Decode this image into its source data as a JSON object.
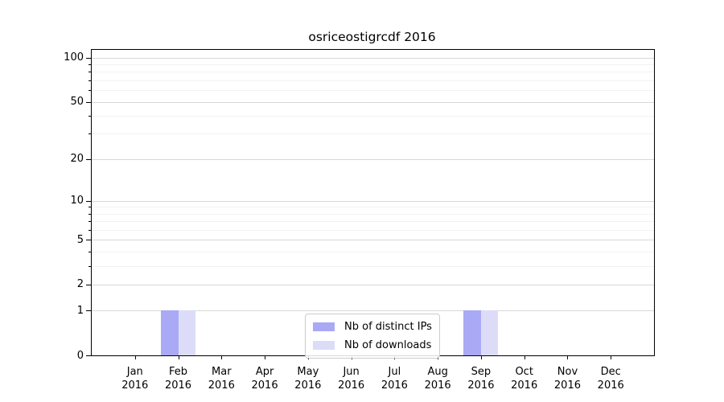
{
  "chart_data": {
    "type": "bar",
    "title": "osriceostigrcdf 2016",
    "categories": [
      "Jan 2016",
      "Feb 2016",
      "Mar 2016",
      "Apr 2016",
      "May 2016",
      "Jun 2016",
      "Jul 2016",
      "Aug 2016",
      "Sep 2016",
      "Oct 2016",
      "Nov 2016",
      "Dec 2016"
    ],
    "series": [
      {
        "name": "Nb of distinct IPs",
        "color": "#a9a9f5",
        "values": [
          0,
          1,
          0,
          0,
          0,
          0,
          0,
          0,
          1,
          0,
          0,
          0
        ]
      },
      {
        "name": "Nb of downloads",
        "color": "#dcdcf9",
        "values": [
          0,
          1,
          0,
          0,
          0,
          0,
          0,
          0,
          1,
          0,
          0,
          0
        ]
      }
    ],
    "xlabel": "",
    "ylabel": "",
    "yscale": "log1p",
    "ylim": [
      0,
      113
    ],
    "yticks_major": [
      0,
      1,
      2,
      5,
      10,
      20,
      50,
      100
    ],
    "yticks_minor": [
      3,
      4,
      6,
      7,
      8,
      9,
      30,
      40,
      60,
      70,
      80,
      90
    ],
    "grid": true,
    "legend_position": "lower center",
    "legend_border_color": "#cccccc",
    "axis_color": "#000000",
    "gridline_major_color": "#d8d8d8",
    "gridline_minor_color": "#f2f2f2"
  }
}
